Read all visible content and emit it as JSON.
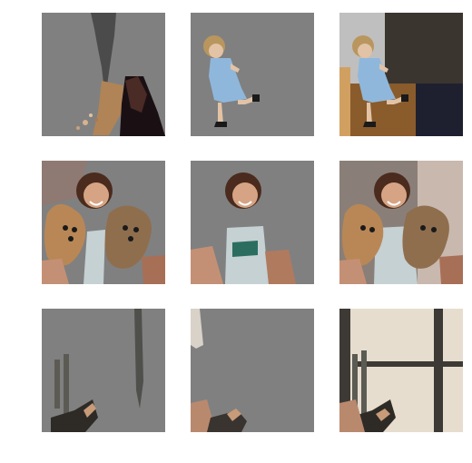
{
  "colors": {
    "mask_gray": "#808080",
    "background": "#ffffff"
  },
  "grid": {
    "rows": 3,
    "cols": 3
  }
}
